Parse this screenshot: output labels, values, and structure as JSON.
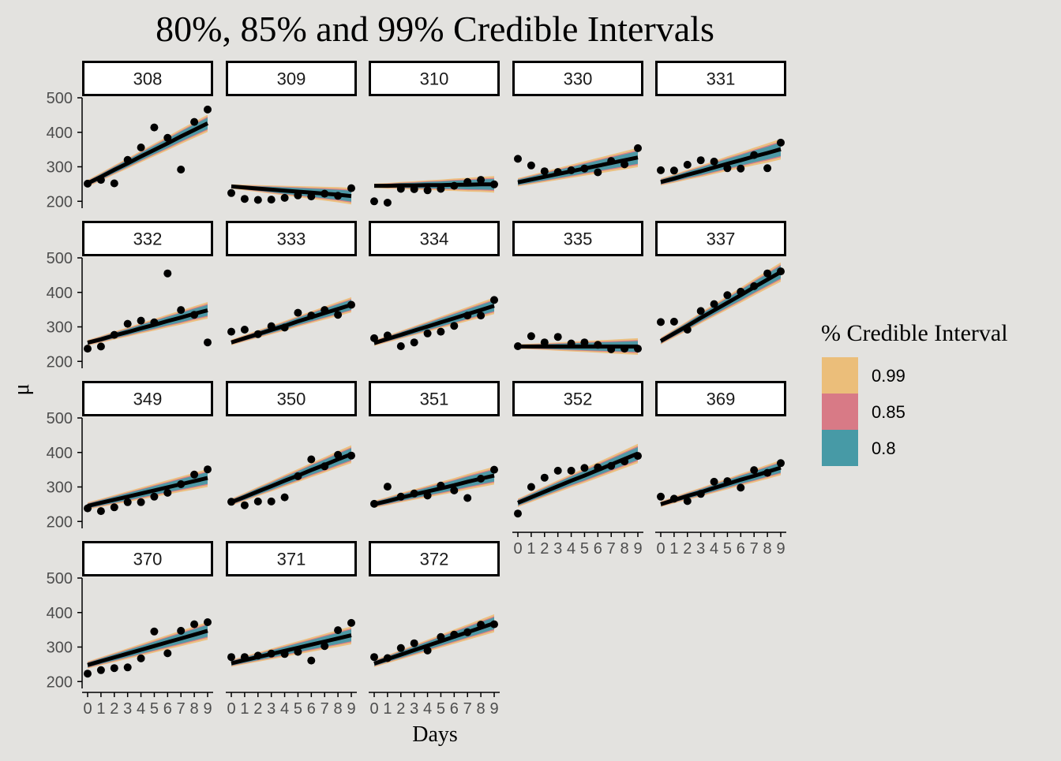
{
  "chart_data": {
    "type": "line",
    "title": "80%, 85% and 99% Credible Intervals",
    "xlabel": "Days",
    "ylabel": "μ",
    "xlim": [
      0,
      9
    ],
    "ylim": [
      180,
      500
    ],
    "x_ticks": [
      "0",
      "1",
      "2",
      "3",
      "4",
      "5",
      "6",
      "7",
      "8",
      "9"
    ],
    "y_ticks": [
      "200",
      "300",
      "400",
      "500"
    ],
    "x": [
      0,
      1,
      2,
      3,
      4,
      5,
      6,
      7,
      8,
      9
    ],
    "legend": {
      "title": "% Credible Interval",
      "position": "right",
      "entries": [
        {
          "label": "0.99",
          "color": "#ebbe7a"
        },
        {
          "label": "0.85",
          "color": "#d87a86"
        },
        {
          "label": "0.8",
          "color": "#479aa6"
        }
      ]
    },
    "colors": {
      "band99": "#ebbe7a",
      "band85": "#d87a86",
      "band80": "#479aa6",
      "line": "#000000",
      "points": "#000000"
    },
    "panels": [
      {
        "subject": "308",
        "fit": [
          252,
          271,
          291,
          310,
          330,
          349,
          368,
          388,
          407,
          426
        ],
        "ci99": [
          10,
          25
        ],
        "points": [
          251,
          262,
          252,
          320,
          356,
          414,
          384,
          292,
          430,
          466
        ]
      },
      {
        "subject": "309",
        "fit": [
          243,
          240,
          237,
          234,
          231,
          228,
          225,
          222,
          219,
          215
        ],
        "ci99": [
          6,
          24
        ],
        "points": [
          224,
          207,
          204,
          205,
          210,
          217,
          214,
          222,
          216,
          238
        ]
      },
      {
        "subject": "310",
        "fit": [
          245,
          245,
          246,
          246,
          247,
          247,
          248,
          248,
          249,
          249
        ],
        "ci99": [
          6,
          24
        ],
        "points": [
          200,
          196,
          236,
          235,
          232,
          236,
          245,
          256,
          262,
          249
        ]
      },
      {
        "subject": "330",
        "fit": [
          255,
          263,
          271,
          279,
          287,
          295,
          303,
          311,
          319,
          327
        ],
        "ci99": [
          12,
          28
        ],
        "points": [
          323,
          304,
          287,
          285,
          290,
          295,
          284,
          317,
          307,
          354
        ]
      },
      {
        "subject": "331",
        "fit": [
          256,
          266,
          277,
          287,
          298,
          309,
          319,
          330,
          340,
          351
        ],
        "ci99": [
          10,
          30
        ],
        "points": [
          290,
          289,
          306,
          319,
          315,
          296,
          295,
          334,
          296,
          370
        ]
      },
      {
        "subject": "332",
        "fit": [
          254,
          264,
          275,
          285,
          296,
          306,
          317,
          327,
          338,
          348
        ],
        "ci99": [
          8,
          24
        ],
        "points": [
          237,
          243,
          277,
          309,
          318,
          313,
          455,
          349,
          335,
          255
        ]
      },
      {
        "subject": "333",
        "fit": [
          255,
          267,
          279,
          291,
          303,
          316,
          328,
          340,
          352,
          364
        ],
        "ci99": [
          8,
          22
        ],
        "points": [
          286,
          292,
          279,
          302,
          298,
          341,
          333,
          349,
          335,
          364
        ]
      },
      {
        "subject": "334",
        "fit": [
          253,
          265,
          277,
          289,
          301,
          313,
          325,
          337,
          349,
          361
        ],
        "ci99": [
          8,
          24
        ],
        "points": [
          267,
          275,
          244,
          255,
          281,
          286,
          303,
          333,
          333,
          378
        ]
      },
      {
        "subject": "335",
        "fit": [
          243,
          243,
          243,
          243,
          243,
          243,
          243,
          243,
          243,
          243
        ],
        "ci99": [
          6,
          24
        ],
        "points": [
          244,
          273,
          255,
          271,
          252,
          255,
          248,
          235,
          237,
          237
        ]
      },
      {
        "subject": "337",
        "fit": [
          259,
          281,
          303,
          326,
          348,
          370,
          392,
          415,
          437,
          459
        ],
        "ci99": [
          10,
          28
        ],
        "points": [
          314,
          315,
          292,
          346,
          366,
          392,
          402,
          418,
          455,
          461
        ]
      },
      {
        "subject": "349",
        "fit": [
          245,
          254,
          263,
          272,
          281,
          290,
          299,
          308,
          317,
          326
        ],
        "ci99": [
          10,
          26
        ],
        "points": [
          238,
          230,
          241,
          256,
          256,
          272,
          283,
          308,
          336,
          351
        ]
      },
      {
        "subject": "350",
        "fit": [
          256,
          271,
          287,
          302,
          318,
          333,
          349,
          364,
          380,
          395
        ],
        "ci99": [
          10,
          26
        ],
        "points": [
          257,
          247,
          258,
          258,
          270,
          331,
          380,
          360,
          393,
          391
        ]
      },
      {
        "subject": "351",
        "fit": [
          250,
          259,
          269,
          278,
          287,
          296,
          305,
          315,
          324,
          333
        ],
        "ci99": [
          10,
          26
        ],
        "points": [
          251,
          301,
          272,
          281,
          275,
          304,
          290,
          268,
          324,
          350
        ]
      },
      {
        "subject": "352",
        "fit": [
          254,
          270,
          286,
          302,
          318,
          333,
          349,
          365,
          381,
          397
        ],
        "ci99": [
          12,
          28
        ],
        "points": [
          223,
          300,
          327,
          347,
          347,
          355,
          357,
          361,
          374,
          390
        ]
      },
      {
        "subject": "369",
        "fit": [
          250,
          262,
          274,
          285,
          297,
          309,
          321,
          332,
          344,
          356
        ],
        "ci99": [
          8,
          22
        ],
        "points": [
          272,
          266,
          259,
          280,
          315,
          317,
          298,
          349,
          341,
          369
        ]
      },
      {
        "subject": "370",
        "fit": [
          248,
          259,
          270,
          281,
          292,
          303,
          314,
          325,
          336,
          347
        ],
        "ci99": [
          10,
          26
        ],
        "points": [
          223,
          233,
          239,
          241,
          267,
          345,
          282,
          347,
          366,
          372
        ]
      },
      {
        "subject": "371",
        "fit": [
          253,
          262,
          271,
          280,
          289,
          298,
          307,
          316,
          325,
          334
        ],
        "ci99": [
          10,
          26
        ],
        "points": [
          271,
          271,
          275,
          281,
          280,
          286,
          261,
          303,
          349,
          370
        ]
      },
      {
        "subject": "372",
        "fit": [
          252,
          265,
          278,
          291,
          304,
          317,
          330,
          343,
          356,
          369
        ],
        "ci99": [
          10,
          26
        ],
        "points": [
          271,
          268,
          297,
          311,
          290,
          329,
          336,
          343,
          365,
          366
        ]
      }
    ]
  }
}
